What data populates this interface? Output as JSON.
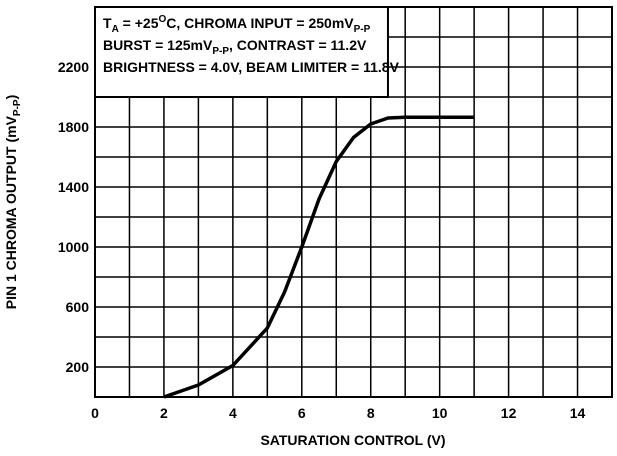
{
  "chart_data": {
    "type": "line",
    "xlabel": "SATURATION CONTROL (V)",
    "ylabel": [
      {
        "text": "PIN 1 CHROMA OUTPUT (mV"
      },
      {
        "text": "P-P",
        "sub": true
      },
      {
        "text": ")"
      }
    ],
    "annotation": [
      [
        {
          "text": "T"
        },
        {
          "text": "A",
          "sub": true
        },
        {
          "text": " = +25"
        },
        {
          "text": "O",
          "sup": true
        },
        {
          "text": "C, CHROMA INPUT = 250mV"
        },
        {
          "text": "P-P",
          "sub": true
        }
      ],
      [
        {
          "text": "BURST = 125mV"
        },
        {
          "text": "P-P",
          "sub": true
        },
        {
          "text": ", CONTRAST = 11.2V"
        }
      ],
      [
        {
          "text": "BRIGHTNESS = 4.0V, BEAM LIMITER = 11.8V"
        }
      ]
    ],
    "x": [
      2,
      3,
      4,
      5,
      5.5,
      6,
      6.5,
      7,
      7.5,
      8,
      8.5,
      9,
      11
    ],
    "series": [
      {
        "name": "Chroma output",
        "color": "#000000",
        "values": [
          0,
          80,
          210,
          460,
          700,
          1000,
          1320,
          1570,
          1730,
          1820,
          1860,
          1865,
          1865
        ]
      }
    ],
    "xlim": [
      0,
      15
    ],
    "xticks": [
      0,
      2,
      4,
      6,
      8,
      10,
      12,
      14
    ],
    "xgrid": [
      0,
      1,
      2,
      3,
      4,
      5,
      6,
      7,
      8,
      9,
      10,
      11,
      12,
      13,
      14,
      15
    ],
    "ylim": [
      0,
      2600
    ],
    "yticks": [
      200,
      600,
      1000,
      1400,
      1800,
      2200
    ],
    "ygrid": [
      0,
      200,
      400,
      600,
      800,
      1000,
      1200,
      1400,
      1600,
      1800,
      2000,
      2200,
      2400,
      2600
    ],
    "grid": true
  }
}
